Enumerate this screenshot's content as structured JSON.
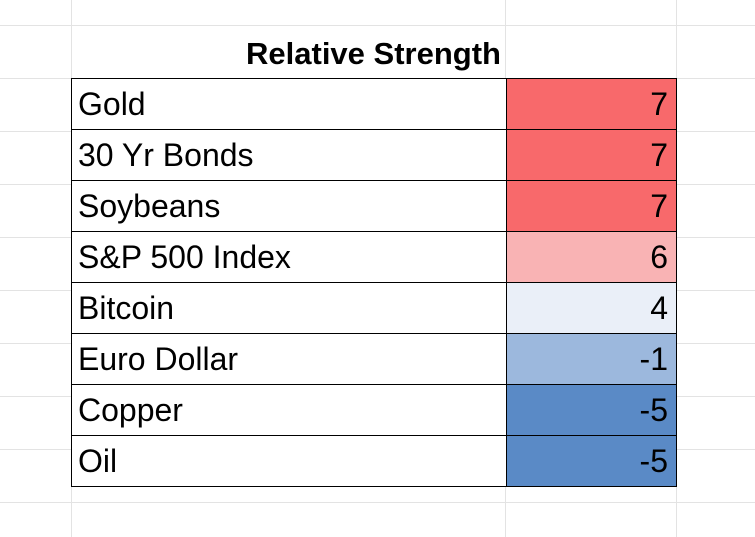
{
  "title": "Relative Strength",
  "rows": [
    {
      "name": "Gold",
      "value": "7",
      "color": "#f8696b"
    },
    {
      "name": "30 Yr Bonds",
      "value": "7",
      "color": "#f8696b"
    },
    {
      "name": "Soybeans",
      "value": "7",
      "color": "#f8696b"
    },
    {
      "name": "S&P 500 Index",
      "value": "6",
      "color": "#f9b3b4"
    },
    {
      "name": "Bitcoin",
      "value": "4",
      "color": "#eaeff8"
    },
    {
      "name": "Euro Dollar",
      "value": "-1",
      "color": "#9cb8dd"
    },
    {
      "name": "Copper",
      "value": "-5",
      "color": "#5a8ac6"
    },
    {
      "name": "Oil",
      "value": "-5",
      "color": "#5a8ac6"
    }
  ]
}
